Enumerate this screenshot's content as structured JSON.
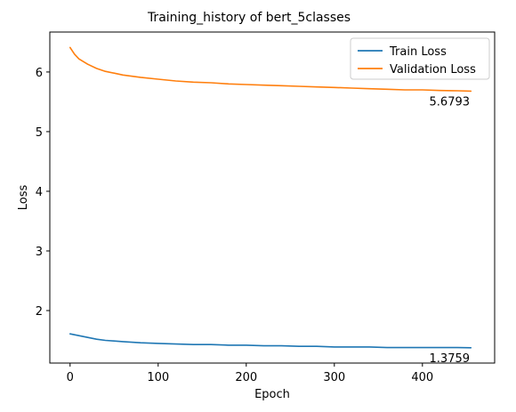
{
  "chart_data": {
    "type": "line",
    "title": "Training_history of bert_5classes",
    "xlabel": "Epoch",
    "ylabel": "Loss",
    "xlim": [
      -23,
      482
    ],
    "ylim": [
      1.12,
      6.67
    ],
    "xticks": [
      0,
      100,
      200,
      300,
      400
    ],
    "yticks": [
      2,
      3,
      4,
      5,
      6
    ],
    "legend_position": "top-right",
    "grid": false,
    "series": [
      {
        "name": "Train Loss",
        "color": "#1f77b4",
        "x": [
          0,
          10,
          20,
          30,
          40,
          50,
          60,
          80,
          100,
          120,
          140,
          160,
          180,
          200,
          220,
          240,
          260,
          280,
          300,
          320,
          340,
          360,
          380,
          400,
          420,
          440,
          455
        ],
        "y": [
          1.61,
          1.58,
          1.55,
          1.52,
          1.5,
          1.49,
          1.48,
          1.46,
          1.45,
          1.44,
          1.43,
          1.43,
          1.42,
          1.42,
          1.41,
          1.41,
          1.4,
          1.4,
          1.39,
          1.39,
          1.39,
          1.38,
          1.38,
          1.38,
          1.38,
          1.38,
          1.376
        ],
        "final_label": "1.3759"
      },
      {
        "name": "Validation Loss",
        "color": "#ff7f0e",
        "x": [
          0,
          5,
          10,
          20,
          30,
          40,
          50,
          60,
          80,
          100,
          120,
          140,
          160,
          180,
          200,
          220,
          240,
          260,
          280,
          300,
          320,
          340,
          360,
          380,
          400,
          420,
          440,
          455
        ],
        "y": [
          6.41,
          6.3,
          6.22,
          6.13,
          6.06,
          6.01,
          5.98,
          5.95,
          5.91,
          5.88,
          5.85,
          5.83,
          5.82,
          5.8,
          5.79,
          5.78,
          5.77,
          5.76,
          5.75,
          5.74,
          5.73,
          5.72,
          5.71,
          5.7,
          5.7,
          5.69,
          5.685,
          5.679
        ],
        "final_label": "5.6793"
      }
    ]
  }
}
